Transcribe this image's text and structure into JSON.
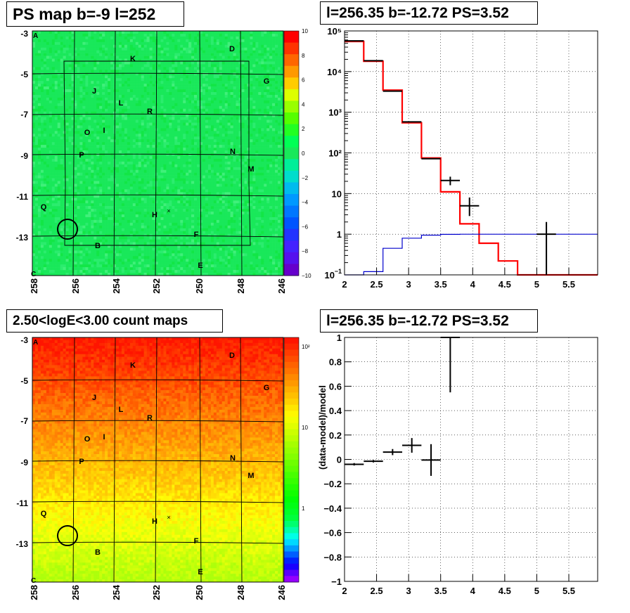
{
  "panels": {
    "top_left_title": "PS map b=-9 l=252",
    "top_right_title": "l=256.35 b=-12.72 PS=3.52",
    "bottom_left_title": "2.50<logE<3.00 count maps",
    "bottom_right_title": "l=256.35 b=-12.72 PS=3.52"
  },
  "chart_data": [
    {
      "type": "heatmap",
      "title": "PS map b=-9 l=252",
      "xlim": [
        258,
        246
      ],
      "ylim": [
        -14.2,
        -3
      ],
      "x_ticks": [
        "258",
        "256",
        "254",
        "252",
        "250",
        "248",
        "246"
      ],
      "y_ticks": [
        "-3",
        "-5",
        "-7",
        "-9",
        "-11",
        "-13"
      ],
      "corner_labels": [
        "A",
        "C"
      ],
      "source_labels": [
        "D",
        "K",
        "G",
        "J",
        "L",
        "R",
        "O",
        "I",
        "P",
        "N",
        "M",
        "Q",
        "H",
        "F",
        "B",
        "E"
      ],
      "colorbar_ticks": [
        "10",
        "8",
        "6",
        "4",
        "2",
        "0",
        "−2",
        "−4",
        "−6",
        "−8",
        "−10"
      ],
      "colorbar_range": [
        -10,
        10
      ],
      "dominant_value": 1.0,
      "colors": {
        "dominant": "#19e85a"
      }
    },
    {
      "type": "line",
      "title": "l=256.35 b=-12.72 PS=3.52",
      "log_y": true,
      "xlim": [
        2,
        5.95
      ],
      "ylim": [
        0.1,
        100000
      ],
      "x_ticks": [
        "2",
        "2.5",
        "3",
        "3.5",
        "4",
        "4.5",
        "5",
        "5.5"
      ],
      "y_ticks": [
        "10",
        "1",
        "10",
        "10²",
        "10³",
        "10⁴",
        "10⁵"
      ],
      "grid": true,
      "series": [
        {
          "name": "",
          "color": "#ff0000",
          "style": "step",
          "x": [
            2.0,
            2.3,
            2.6,
            2.9,
            3.2,
            3.5,
            3.8,
            4.1,
            4.4,
            4.7,
            5.0,
            5.3,
            5.6
          ],
          "values": [
            55000,
            18000,
            3500,
            550,
            75,
            11,
            1.8,
            0.6,
            0.22,
            0.1,
            0.1,
            0.1,
            0.1
          ]
        },
        {
          "name": "",
          "color": "#0000cc",
          "style": "step",
          "x": [
            2.0,
            2.3,
            2.6,
            2.9,
            3.2,
            3.5,
            3.8,
            4.1,
            4.4,
            4.7,
            5.0,
            5.3,
            5.6
          ],
          "values": [
            0.09,
            0.12,
            0.45,
            0.8,
            0.95,
            0.99,
            1.0,
            1.0,
            1.0,
            1.0,
            1.0,
            1.0,
            1.0
          ]
        },
        {
          "name": "",
          "color": "#000000",
          "style": "points",
          "x": [
            2.15,
            2.45,
            2.75,
            3.05,
            3.35,
            3.65,
            3.95,
            4.25,
            4.55,
            4.85,
            5.15
          ],
          "values": [
            57000,
            18500,
            3300,
            580,
            72,
            21,
            5.0,
            null,
            null,
            null,
            1.0
          ],
          "err_lo": [
            0,
            0,
            0,
            0,
            0,
            5,
            2.2,
            null,
            null,
            null,
            0.9
          ],
          "err_hi": [
            0,
            0,
            0,
            0,
            0,
            5,
            3.0,
            null,
            null,
            null,
            1.0
          ]
        }
      ]
    },
    {
      "type": "heatmap",
      "title": "2.50<logE<3.00 count maps",
      "xlim": [
        258,
        246
      ],
      "ylim": [
        -14.2,
        -3
      ],
      "x_ticks": [
        "258",
        "256",
        "254",
        "252",
        "250",
        "248",
        "246"
      ],
      "y_ticks": [
        "-3",
        "-5",
        "-7",
        "-9",
        "-11",
        "-13"
      ],
      "corner_labels": [
        "A",
        "C"
      ],
      "source_labels": [
        "D",
        "K",
        "G",
        "J",
        "L",
        "R",
        "O",
        "I",
        "P",
        "N",
        "M",
        "Q",
        "H",
        "F",
        "B",
        "E"
      ],
      "colorbar_ticks": [
        "10²",
        "10",
        "1"
      ],
      "log_z": true,
      "gradient": "counts decrease from top (about 100) to bottom (about 5)",
      "colors": {
        "top": "#ff2200",
        "middle": "#ff9900",
        "bottom": "#c8f000"
      }
    },
    {
      "type": "scatter",
      "title": "l=256.35 b=-12.72 PS=3.52",
      "ylabel": "(data-model)/model",
      "xlim": [
        2,
        5.95
      ],
      "ylim": [
        -1,
        1
      ],
      "x_ticks": [
        "2",
        "2.5",
        "3",
        "3.5",
        "4",
        "4.5",
        "5",
        "5.5"
      ],
      "y_ticks": [
        "−1",
        "−0.8",
        "−0.6",
        "−0.4",
        "−0.2",
        "0",
        "0.2",
        "0.4",
        "0.6",
        "0.8",
        "1"
      ],
      "grid": true,
      "points": [
        {
          "x": 2.15,
          "y": -0.04,
          "xerr": 0.15,
          "yerr": 0.01
        },
        {
          "x": 2.45,
          "y": -0.015,
          "xerr": 0.15,
          "yerr": 0.01
        },
        {
          "x": 2.75,
          "y": 0.06,
          "xerr": 0.15,
          "yerr": 0.025
        },
        {
          "x": 3.05,
          "y": 0.115,
          "xerr": 0.15,
          "yerr": 0.06
        },
        {
          "x": 3.35,
          "y": -0.005,
          "xerr": 0.15,
          "yerr": 0.13
        },
        {
          "x": 3.65,
          "y": 1.0,
          "xerr": 0.15,
          "yerr_lo": 0.45,
          "yerr_hi": 0.0
        }
      ]
    }
  ]
}
